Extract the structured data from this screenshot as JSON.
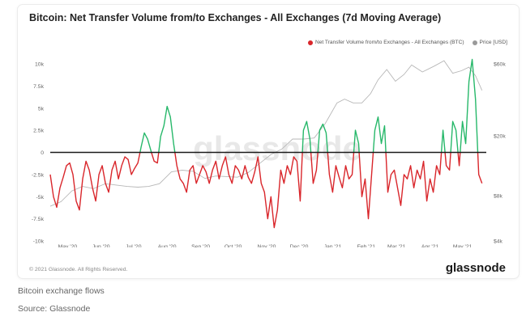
{
  "caption": {
    "line1": "Bitcoin exchange flows",
    "line2": "Source: Glassnode"
  },
  "card": {
    "copyright": "© 2021 Glassnode. All Rights Reserved.",
    "brand": "glassnode",
    "watermark": "glassnode"
  },
  "chart_data": {
    "type": "line",
    "title": "Bitcoin: Net Transfer Volume from/to Exchanges - All Exchanges (7d Moving Average)",
    "xlabel": "",
    "ylabel": "",
    "legend_placement": "top-right",
    "legend": [
      "Net Transfer Volume from/to Exchanges - All Exchanges (BTC)",
      "Price [USD]"
    ],
    "x_ticks": [
      "May '20",
      "Jun '20",
      "Jul '20",
      "Aug '20",
      "Sep '20",
      "Oct '20",
      "Nov '20",
      "Dec '20",
      "Jan '21",
      "Feb '21",
      "Mar '21",
      "Apr '21",
      "May '21"
    ],
    "y_left": {
      "ticks": [
        "10k",
        "7.5k",
        "5k",
        "2.5k",
        "0",
        "-2.5k",
        "-5k",
        "-7.5k",
        "-10k"
      ],
      "tick_values": [
        10000,
        7500,
        5000,
        2500,
        0,
        -2500,
        -5000,
        -7500,
        -10000
      ],
      "range": [
        -10000,
        10000
      ]
    },
    "y_right": {
      "ticks": [
        "$60k",
        "$20k",
        "$8k",
        "$4k"
      ],
      "tick_values": [
        60000,
        20000,
        8000,
        4000
      ],
      "scale": "log",
      "range": [
        4000,
        60000
      ]
    },
    "grid": false,
    "colors": {
      "outflow": "#d9262b",
      "inflow": "#27b86a",
      "price": "#b7b7b7",
      "zero_line": "#1a1a1a"
    },
    "series": [
      {
        "name": "Net Transfer Volume from/to Exchanges - All Exchanges (BTC)",
        "axis": "left",
        "x": [
          "2020-04-15",
          "2020-04-18",
          "2020-04-21",
          "2020-04-24",
          "2020-04-27",
          "2020-04-30",
          "2020-05-03",
          "2020-05-06",
          "2020-05-09",
          "2020-05-12",
          "2020-05-15",
          "2020-05-18",
          "2020-05-21",
          "2020-05-24",
          "2020-05-27",
          "2020-05-30",
          "2020-06-02",
          "2020-06-05",
          "2020-06-08",
          "2020-06-11",
          "2020-06-14",
          "2020-06-17",
          "2020-06-20",
          "2020-06-23",
          "2020-06-26",
          "2020-06-29",
          "2020-07-02",
          "2020-07-05",
          "2020-07-08",
          "2020-07-11",
          "2020-07-14",
          "2020-07-17",
          "2020-07-20",
          "2020-07-23",
          "2020-07-26",
          "2020-07-29",
          "2020-08-01",
          "2020-08-04",
          "2020-08-07",
          "2020-08-10",
          "2020-08-13",
          "2020-08-16",
          "2020-08-19",
          "2020-08-22",
          "2020-08-25",
          "2020-08-28",
          "2020-08-31",
          "2020-09-03",
          "2020-09-06",
          "2020-09-09",
          "2020-09-12",
          "2020-09-15",
          "2020-09-18",
          "2020-09-21",
          "2020-09-24",
          "2020-09-27",
          "2020-09-30",
          "2020-10-03",
          "2020-10-06",
          "2020-10-09",
          "2020-10-12",
          "2020-10-15",
          "2020-10-18",
          "2020-10-21",
          "2020-10-24",
          "2020-10-27",
          "2020-10-30",
          "2020-11-02",
          "2020-11-05",
          "2020-11-08",
          "2020-11-11",
          "2020-11-14",
          "2020-11-17",
          "2020-11-20",
          "2020-11-23",
          "2020-11-26",
          "2020-11-29",
          "2020-12-02",
          "2020-12-05",
          "2020-12-08",
          "2020-12-11",
          "2020-12-14",
          "2020-12-17",
          "2020-12-20",
          "2020-12-23",
          "2020-12-26",
          "2020-12-29",
          "2021-01-01",
          "2021-01-04",
          "2021-01-07",
          "2021-01-10",
          "2021-01-13",
          "2021-01-16",
          "2021-01-19",
          "2021-01-22",
          "2021-01-25",
          "2021-01-28",
          "2021-01-31",
          "2021-02-03",
          "2021-02-06",
          "2021-02-09",
          "2021-02-12",
          "2021-02-15",
          "2021-02-18",
          "2021-02-21",
          "2021-02-24",
          "2021-02-27",
          "2021-03-02",
          "2021-03-05",
          "2021-03-08",
          "2021-03-11",
          "2021-03-14",
          "2021-03-17",
          "2021-03-20",
          "2021-03-23",
          "2021-03-26",
          "2021-03-29",
          "2021-04-01",
          "2021-04-04",
          "2021-04-07",
          "2021-04-10",
          "2021-04-13",
          "2021-04-16",
          "2021-04-19",
          "2021-04-22",
          "2021-04-25",
          "2021-04-28",
          "2021-05-01",
          "2021-05-04",
          "2021-05-07",
          "2021-05-10",
          "2021-05-13",
          "2021-05-16",
          "2021-05-19"
        ],
        "values": [
          -2500,
          -5000,
          -6200,
          -4000,
          -2800,
          -1500,
          -1200,
          -2500,
          -5500,
          -6500,
          -3000,
          -1000,
          -2000,
          -4000,
          -5500,
          -2500,
          -1500,
          -3500,
          -4500,
          -2000,
          -1000,
          -3000,
          -1500,
          -500,
          -800,
          -2500,
          -1800,
          -1200,
          600,
          2200,
          1500,
          200,
          -1000,
          -1200,
          1800,
          3000,
          5200,
          4000,
          1000,
          -1500,
          -3000,
          -3500,
          -4500,
          -2000,
          -1500,
          -3500,
          -2500,
          -1500,
          -2200,
          -3500,
          -2000,
          -1000,
          -3000,
          -1500,
          -500,
          -2500,
          -3500,
          -1500,
          -2000,
          -3000,
          -1500,
          -2800,
          -3500,
          -2200,
          -500,
          -3500,
          -4500,
          -7500,
          -5000,
          -8500,
          -6500,
          -2000,
          -3500,
          -1500,
          -2500,
          -500,
          -1000,
          -5500,
          2500,
          3500,
          1500,
          -3500,
          -2000,
          2500,
          3200,
          2200,
          -2500,
          -4500,
          -1500,
          -2800,
          -4000,
          -1500,
          -3000,
          -2500,
          2500,
          1000,
          -5000,
          -3000,
          -7500,
          -2500,
          2500,
          4000,
          1000,
          3000,
          -4500,
          -2500,
          -2000,
          -4000,
          -6000,
          -2500,
          -3000,
          -1500,
          -4000,
          -2000,
          -3000,
          -1000,
          -5500,
          -3000,
          -4500,
          -1500,
          -2500,
          2500,
          -1500,
          -2000,
          3500,
          2500,
          -1500,
          3500,
          1000,
          8000,
          10500,
          6000,
          -2500,
          -3500
        ]
      },
      {
        "name": "Price [USD]",
        "axis": "right",
        "x": [
          "2020-04-15",
          "2020-04-25",
          "2020-05-05",
          "2020-05-15",
          "2020-05-25",
          "2020-06-05",
          "2020-06-15",
          "2020-06-25",
          "2020-07-05",
          "2020-07-15",
          "2020-07-25",
          "2020-08-05",
          "2020-08-15",
          "2020-08-25",
          "2020-09-05",
          "2020-09-15",
          "2020-09-25",
          "2020-10-05",
          "2020-10-15",
          "2020-10-25",
          "2020-11-05",
          "2020-11-15",
          "2020-11-25",
          "2020-12-05",
          "2020-12-15",
          "2020-12-25",
          "2021-01-05",
          "2021-01-12",
          "2021-01-20",
          "2021-01-28",
          "2021-02-05",
          "2021-02-12",
          "2021-02-20",
          "2021-02-28",
          "2021-03-08",
          "2021-03-15",
          "2021-03-25",
          "2021-04-05",
          "2021-04-14",
          "2021-04-22",
          "2021-04-30",
          "2021-05-07",
          "2021-05-13",
          "2021-05-19"
        ],
        "values": [
          6800,
          7300,
          8600,
          9200,
          8900,
          9600,
          9400,
          9200,
          9100,
          9200,
          9600,
          11500,
          11800,
          11600,
          10400,
          10800,
          10700,
          10600,
          11400,
          13000,
          15000,
          16300,
          19000,
          19000,
          19300,
          24000,
          33000,
          35000,
          33000,
          33000,
          38000,
          47000,
          55000,
          46000,
          51000,
          59000,
          53000,
          58000,
          63000,
          52000,
          54000,
          57000,
          50000,
          40000
        ]
      }
    ]
  }
}
